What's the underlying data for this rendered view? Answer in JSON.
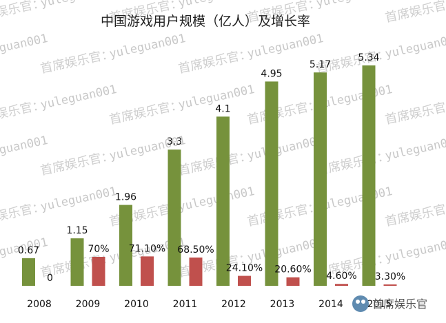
{
  "chart_data": {
    "type": "bar",
    "title": "中国游戏用户规模（亿人）及增长率",
    "categories": [
      "2008",
      "2009",
      "2010",
      "2011",
      "2012",
      "2013",
      "2014",
      "2015"
    ],
    "series": [
      {
        "values": [
          0.67,
          1.15,
          1.96,
          3.3,
          4.1,
          4.95,
          5.17,
          5.34
        ],
        "labels": [
          "0.67",
          "1.15",
          "1.96",
          "3.3",
          "4.1",
          "4.95",
          "5.17",
          "5.34"
        ],
        "color": "#76923c"
      },
      {
        "values": [
          0,
          70,
          71.1,
          68.5,
          24.1,
          20.6,
          4.6,
          3.3
        ],
        "labels": [
          "0",
          "70%",
          "71.10%",
          "68.50%",
          "24.10%",
          "20.60%",
          "4.60%",
          "3.30%"
        ],
        "color": "#c0504d"
      }
    ],
    "ylim_users": [
      0,
      5.6
    ],
    "ylim_growth": [
      0,
      250
    ],
    "grid": false,
    "legend": "none"
  },
  "watermark": {
    "text_latin": "yuleguan001",
    "text_cn": "首席娱乐官",
    "colon": "："
  },
  "logo": {
    "text": "首席娱乐官"
  }
}
